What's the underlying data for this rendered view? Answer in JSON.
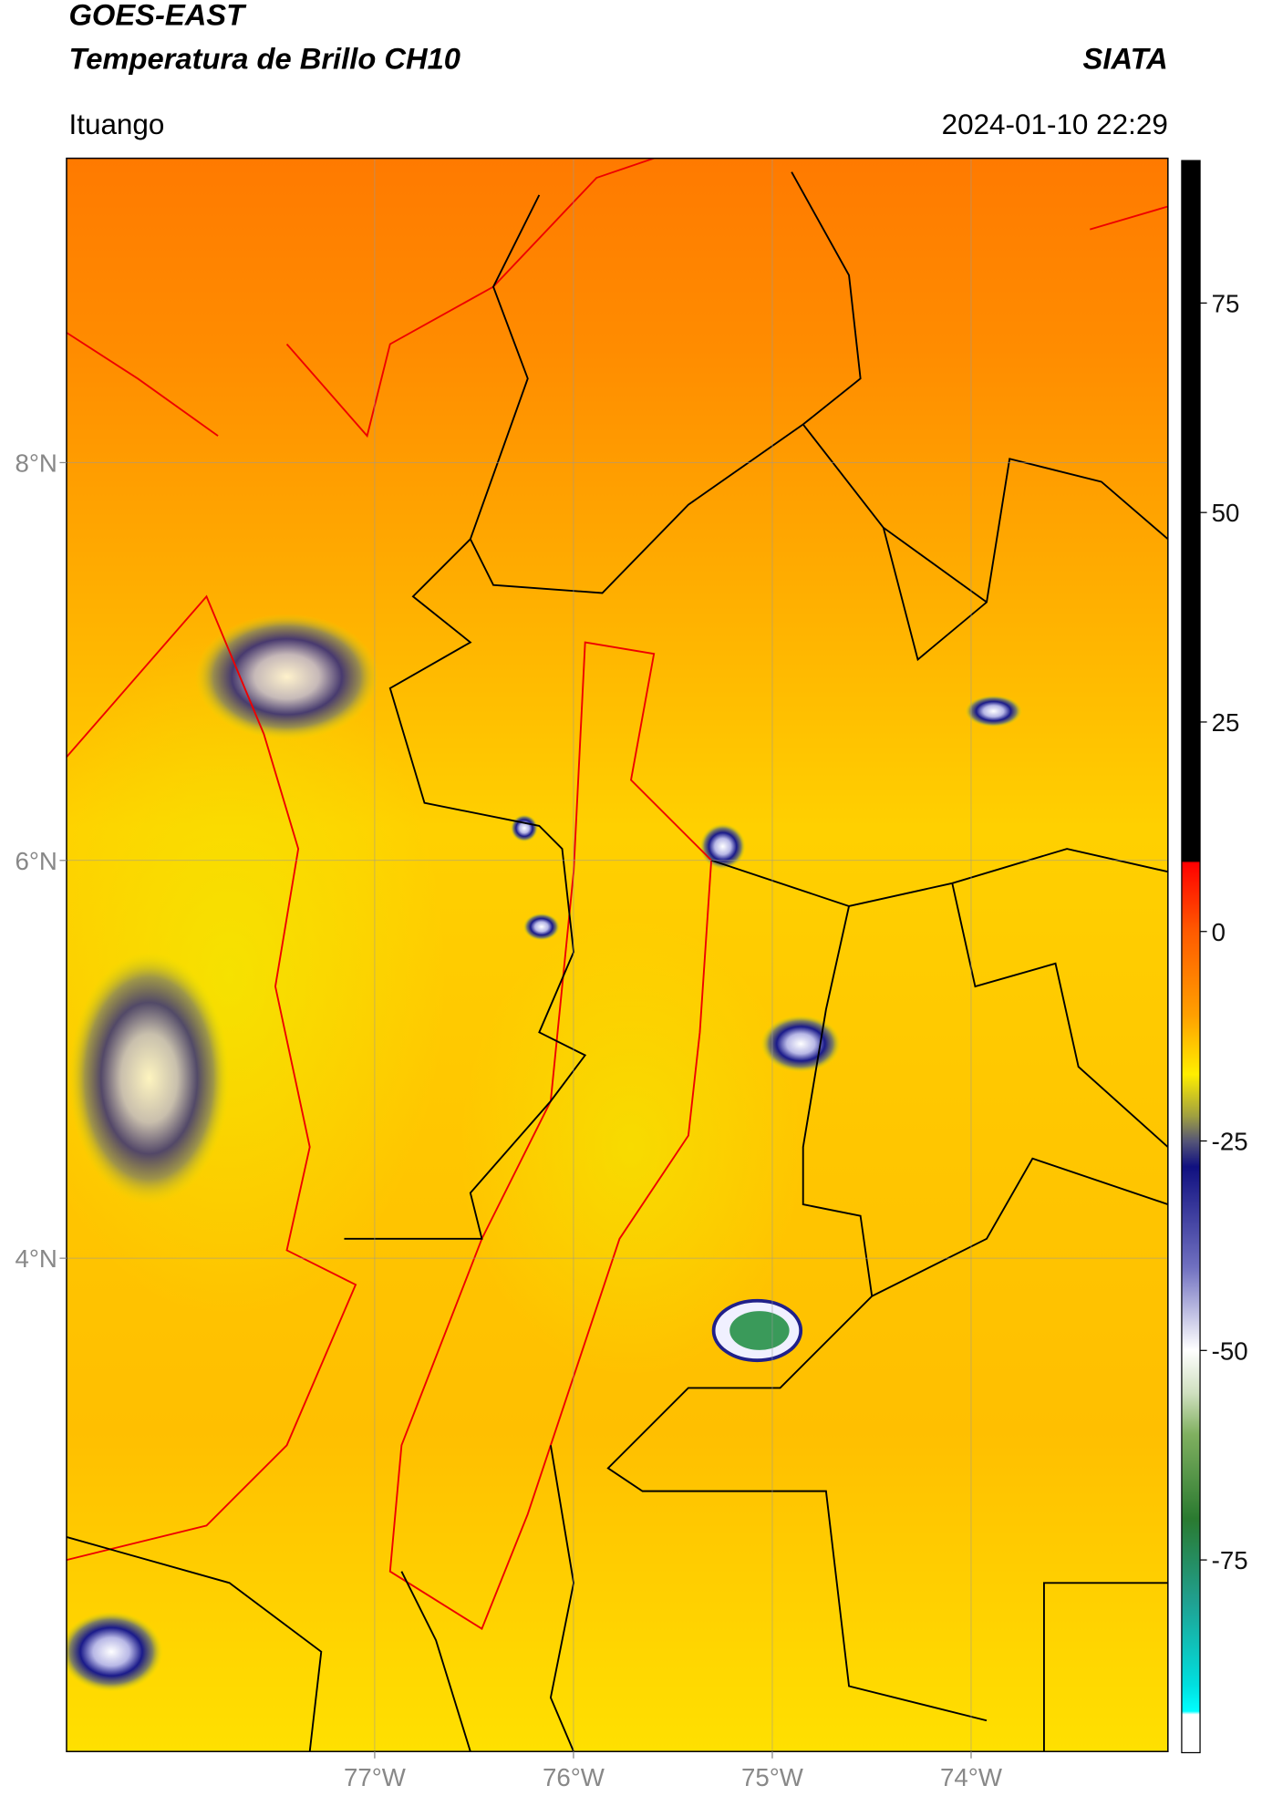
{
  "header": {
    "title": "GOES-EAST",
    "subtitle": "Temperatura de Brillo CH10",
    "org": "SIATA",
    "location": "Ituango",
    "datetime": "2024-01-10 22:29"
  },
  "map": {
    "xlim": [
      -78.55,
      -73.01
    ],
    "ylim": [
      1.52,
      9.53
    ],
    "xticks": [
      {
        "value": -77,
        "label": "77°W"
      },
      {
        "value": -76,
        "label": "76°W"
      },
      {
        "value": -75,
        "label": "75°W"
      },
      {
        "value": -74,
        "label": "74°W"
      }
    ],
    "yticks": [
      {
        "value": 8,
        "label": "8°N"
      },
      {
        "value": 6,
        "label": "6°N"
      },
      {
        "value": 4,
        "label": "4°N"
      }
    ]
  },
  "colorbar": {
    "lim": [
      -98,
      92
    ],
    "ticks": [
      75,
      50,
      25,
      0,
      -25,
      -50,
      -75
    ]
  }
}
